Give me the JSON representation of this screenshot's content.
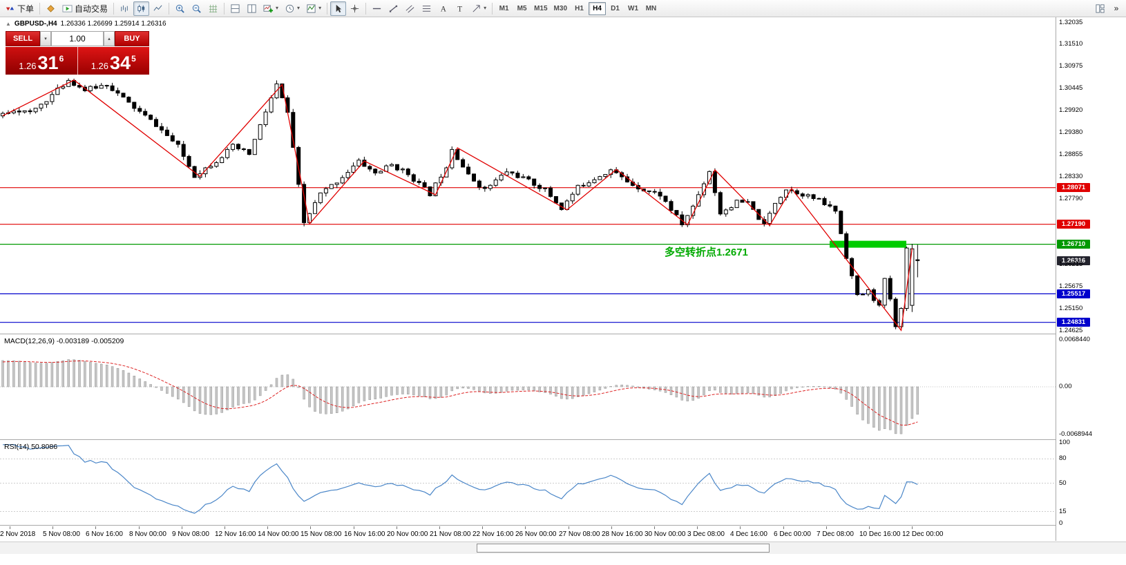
{
  "icons": {
    "caret_down": "▾",
    "caret_up": "▴",
    "overflow": "»",
    "marker_up": "▲"
  },
  "toolbar": {
    "order_label": "下单",
    "autotrade_label": "自动交易",
    "timeframes": [
      "M1",
      "M5",
      "M15",
      "M30",
      "H1",
      "H4",
      "D1",
      "W1",
      "MN"
    ],
    "active_timeframe": "H4"
  },
  "quote_panel": {
    "sell_label": "SELL",
    "buy_label": "BUY",
    "volume_value": "1.00",
    "sell_price_main": "1.26",
    "sell_price_big": "31",
    "sell_price_sup": "6",
    "buy_price_main": "1.26",
    "buy_price_big": "34",
    "buy_price_sup": "5"
  },
  "chart_header": {
    "symbol": "GBPUSD-,H4",
    "ohlc": "1.26336 1.26699 1.25914 1.26316"
  },
  "annotation": {
    "text": "多空转折点1.2671"
  },
  "chart_data": {
    "type": "candlestick",
    "symbol": "GBPUSD",
    "timeframe": "H4",
    "price_range": {
      "top": 1.3217,
      "bottom": 1.2456
    },
    "axis_labels": [
      {
        "text": "1.32035",
        "price": 1.32035,
        "style": "plain"
      },
      {
        "text": "1.31510",
        "price": 1.3151,
        "style": "plain"
      },
      {
        "text": "1.30975",
        "price": 1.30975,
        "style": "plain"
      },
      {
        "text": "1.30445",
        "price": 1.30445,
        "style": "plain"
      },
      {
        "text": "1.29920",
        "price": 1.2992,
        "style": "plain"
      },
      {
        "text": "1.29380",
        "price": 1.2938,
        "style": "plain"
      },
      {
        "text": "1.28855",
        "price": 1.28855,
        "style": "plain"
      },
      {
        "text": "1.28330",
        "price": 1.2833,
        "style": "plain"
      },
      {
        "text": "1.28071",
        "price": 1.28071,
        "style": "red"
      },
      {
        "text": "1.27790",
        "price": 1.2779,
        "style": "plain"
      },
      {
        "text": "1.27190",
        "price": 1.2719,
        "style": "red"
      },
      {
        "text": "1.26710",
        "price": 1.2671,
        "style": "green"
      },
      {
        "text": "1.26316",
        "price": 1.26316,
        "style": "current"
      },
      {
        "text": "1.26215",
        "price": 1.26215,
        "style": "plain"
      },
      {
        "text": "1.25675",
        "price": 1.25675,
        "style": "plain"
      },
      {
        "text": "1.25517",
        "price": 1.25517,
        "style": "blue"
      },
      {
        "text": "1.25150",
        "price": 1.2515,
        "style": "plain"
      },
      {
        "text": "1.24831",
        "price": 1.24831,
        "style": "blue"
      },
      {
        "text": "1.24625",
        "price": 1.24625,
        "style": "plain"
      }
    ],
    "hlines": [
      {
        "price": 1.28071,
        "color": "#e00000"
      },
      {
        "price": 1.2719,
        "color": "#e00000"
      },
      {
        "price": 1.2671,
        "color": "#009900"
      },
      {
        "price": 1.25517,
        "color": "#0000cc"
      },
      {
        "price": 1.24831,
        "color": "#0000cc"
      }
    ],
    "highlight_rect": {
      "price": 1.2671,
      "x1_bar": 151,
      "x2_bar": 165,
      "color": "#00cc00"
    },
    "anchors": [
      [
        -40,
        1.2755
      ],
      [
        -25,
        1.2825
      ],
      [
        -12,
        1.2905
      ],
      [
        0,
        1.2978
      ],
      [
        3,
        1.2996
      ],
      [
        6,
        1.2986
      ],
      [
        10,
        1.303
      ],
      [
        13,
        1.3066
      ],
      [
        16,
        1.3042
      ],
      [
        20,
        1.3056
      ],
      [
        24,
        1.301
      ],
      [
        29,
        1.2958
      ],
      [
        33,
        1.2906
      ],
      [
        36,
        1.2836
      ],
      [
        40,
        1.2872
      ],
      [
        43,
        1.2906
      ],
      [
        46,
        1.2888
      ],
      [
        49,
        1.299
      ],
      [
        51,
        1.3054
      ],
      [
        53,
        1.2988
      ],
      [
        56,
        1.2722
      ],
      [
        59,
        1.2792
      ],
      [
        62,
        1.2822
      ],
      [
        66,
        1.287
      ],
      [
        69,
        1.2842
      ],
      [
        72,
        1.2862
      ],
      [
        75,
        1.284
      ],
      [
        79,
        1.2792
      ],
      [
        82,
        1.286
      ],
      [
        83,
        1.2902
      ],
      [
        86,
        1.2836
      ],
      [
        89,
        1.2802
      ],
      [
        93,
        1.2846
      ],
      [
        96,
        1.283
      ],
      [
        100,
        1.2802
      ],
      [
        103,
        1.2757
      ],
      [
        106,
        1.2808
      ],
      [
        109,
        1.283
      ],
      [
        112,
        1.285
      ],
      [
        115,
        1.2822
      ],
      [
        118,
        1.2802
      ],
      [
        121,
        1.279
      ],
      [
        125,
        1.2719
      ],
      [
        127,
        1.2762
      ],
      [
        130,
        1.2848
      ],
      [
        132,
        1.2746
      ],
      [
        135,
        1.2772
      ],
      [
        137,
        1.277
      ],
      [
        140,
        1.2716
      ],
      [
        142,
        1.2772
      ],
      [
        144,
        1.2804
      ],
      [
        147,
        1.2792
      ],
      [
        150,
        1.2776
      ],
      [
        153,
        1.2752
      ],
      [
        155,
        1.2642
      ],
      [
        157,
        1.2546
      ],
      [
        159,
        1.2558
      ],
      [
        161,
        1.2522
      ],
      [
        162,
        1.2584
      ],
      [
        163,
        1.254
      ],
      [
        164,
        1.247
      ],
      [
        165,
        1.2522
      ],
      [
        166,
        1.266
      ],
      [
        167,
        1.2632
      ]
    ],
    "zigzag": [
      [
        0,
        1.298
      ],
      [
        13,
        1.3066
      ],
      [
        36,
        1.2834
      ],
      [
        51,
        1.3055
      ],
      [
        56,
        1.272
      ],
      [
        66,
        1.2871
      ],
      [
        79,
        1.279
      ],
      [
        83,
        1.2903
      ],
      [
        103,
        1.2754
      ],
      [
        112,
        1.2851
      ],
      [
        125,
        1.2718
      ],
      [
        130,
        1.285
      ],
      [
        140,
        1.2716
      ],
      [
        144,
        1.2805
      ],
      [
        164,
        1.2464
      ],
      [
        166,
        1.2661
      ]
    ],
    "last_candle": {
      "open": 1.26336,
      "high": 1.26699,
      "low": 1.25914,
      "close": 1.26316
    },
    "macd": {
      "label": "MACD(12,26,9) -0.003189 -0.005209",
      "params": [
        12,
        26,
        9
      ],
      "value": -0.003189,
      "signal_value": -0.005209,
      "axis": [
        "0.0068440",
        "0.00",
        "-0.0068944"
      ]
    },
    "rsi": {
      "label": "RSI(14) 50.8086",
      "period": 14,
      "value": 50.8086,
      "axis": [
        "100",
        "80",
        "50",
        "15",
        "0"
      ]
    },
    "dates": [
      "2 Nov 2018",
      "5 Nov 08:00",
      "6 Nov 16:00",
      "8 Nov 00:00",
      "9 Nov 08:00",
      "12 Nov 16:00",
      "14 Nov 00:00",
      "15 Nov 08:00",
      "16 Nov 16:00",
      "20 Nov 00:00",
      "21 Nov 08:00",
      "22 Nov 16:00",
      "26 Nov 00:00",
      "27 Nov 08:00",
      "28 Nov 16:00",
      "30 Nov 00:00",
      "3 Dec 08:00",
      "4 Dec 16:00",
      "6 Dec 00:00",
      "7 Dec 08:00",
      "10 Dec 16:00",
      "12 Dec 00:00"
    ]
  }
}
